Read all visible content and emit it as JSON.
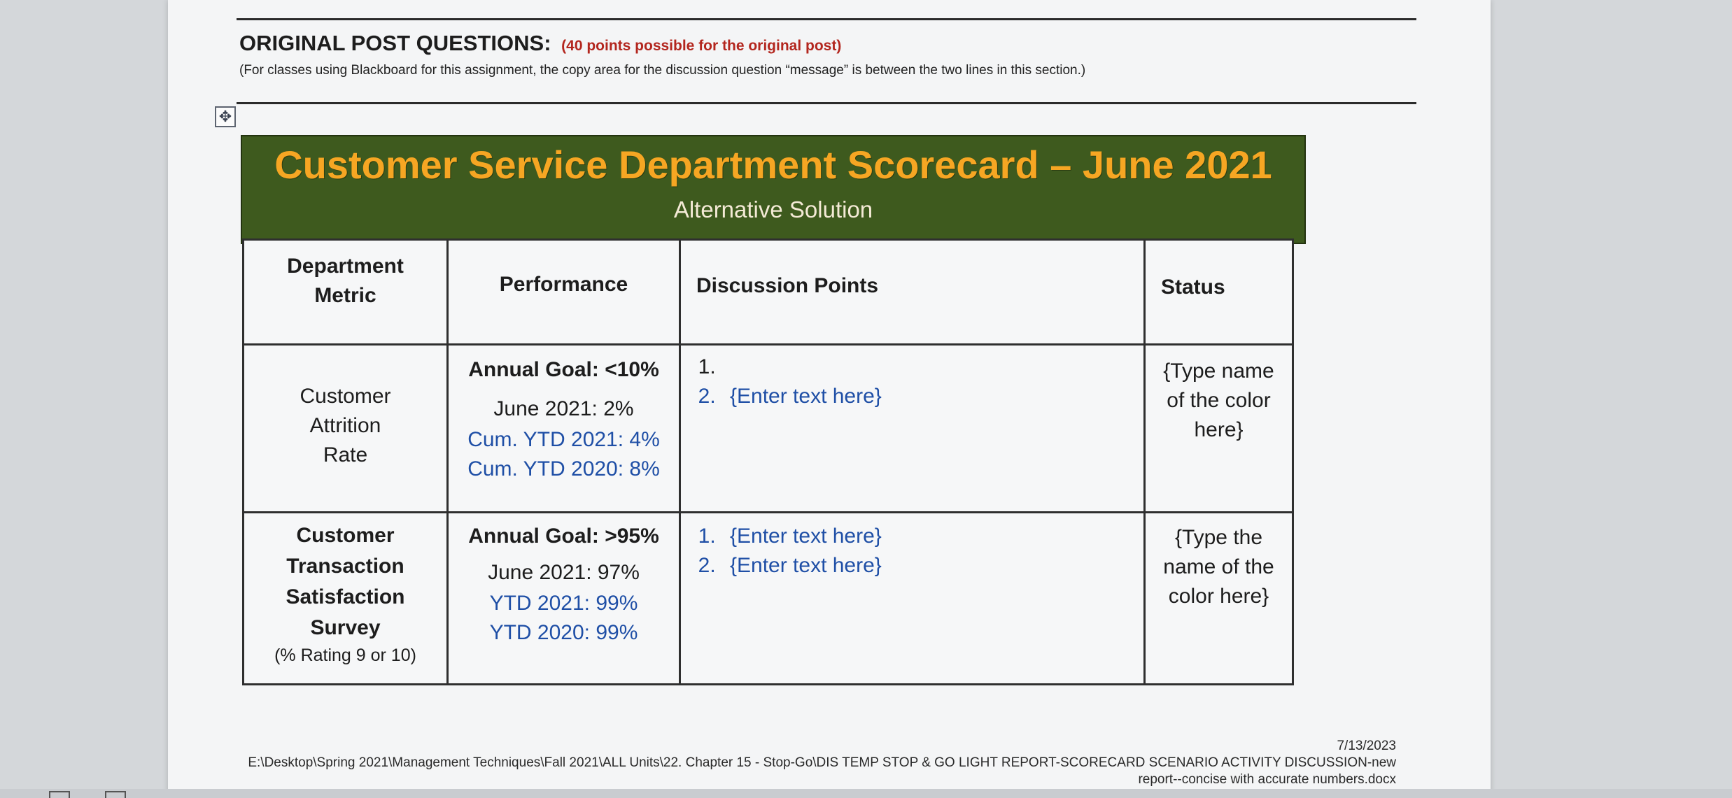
{
  "header": {
    "title": "ORIGINAL POST QUESTIONS:",
    "points_note": "(40 points possible for the original post)",
    "instruction": "(For classes using Blackboard for this assignment, the copy area for the discussion question “message” is between the two lines in this section.)"
  },
  "move_handle_icon": "move-arrows-icon",
  "banner": {
    "title": "Customer Service Department Scorecard – June 2021",
    "subtitle": "Alternative Solution",
    "background": "#3e5a1e",
    "title_color": "#f6a623"
  },
  "table": {
    "headers": {
      "metric_line1": "Department",
      "metric_line2": "Metric",
      "performance": "Performance",
      "discussion": "Discussion Points",
      "status": "Status"
    },
    "rows": [
      {
        "metric": [
          "Customer",
          "Attrition",
          "Rate"
        ],
        "goal": "Annual Goal: <10%",
        "current": "June 2021: 2%",
        "ytd_this": "Cum. YTD 2021: 4%",
        "ytd_last": "Cum. YTD 2020: 8%",
        "points": [
          "",
          "{Enter text here}"
        ],
        "status": [
          "{Type name",
          "of the color",
          "here}"
        ]
      },
      {
        "metric": [
          "Customer",
          "Transaction",
          "Satisfaction",
          "Survey"
        ],
        "metric_note": "(% Rating 9 or 10)",
        "goal": "Annual Goal: >95%",
        "current": "June 2021: 97%",
        "ytd_this": "YTD 2021:  99%",
        "ytd_last": "YTD 2020:  99%",
        "points": [
          "{Enter text here}",
          "{Enter text here}"
        ],
        "status": [
          "{Type the",
          "name of the",
          "color here}"
        ]
      }
    ]
  },
  "footer": {
    "date": "7/13/2023",
    "path_line1": "E:\\Desktop\\Spring 2021\\Management Techniques\\Fall 2021\\ALL Units\\22. Chapter 15 - Stop-Go\\DIS TEMP STOP & GO LIGHT REPORT-SCORECARD SCENARIO ACTIVITY DISCUSSION-new",
    "path_line2": "report--concise with accurate numbers.docx"
  }
}
